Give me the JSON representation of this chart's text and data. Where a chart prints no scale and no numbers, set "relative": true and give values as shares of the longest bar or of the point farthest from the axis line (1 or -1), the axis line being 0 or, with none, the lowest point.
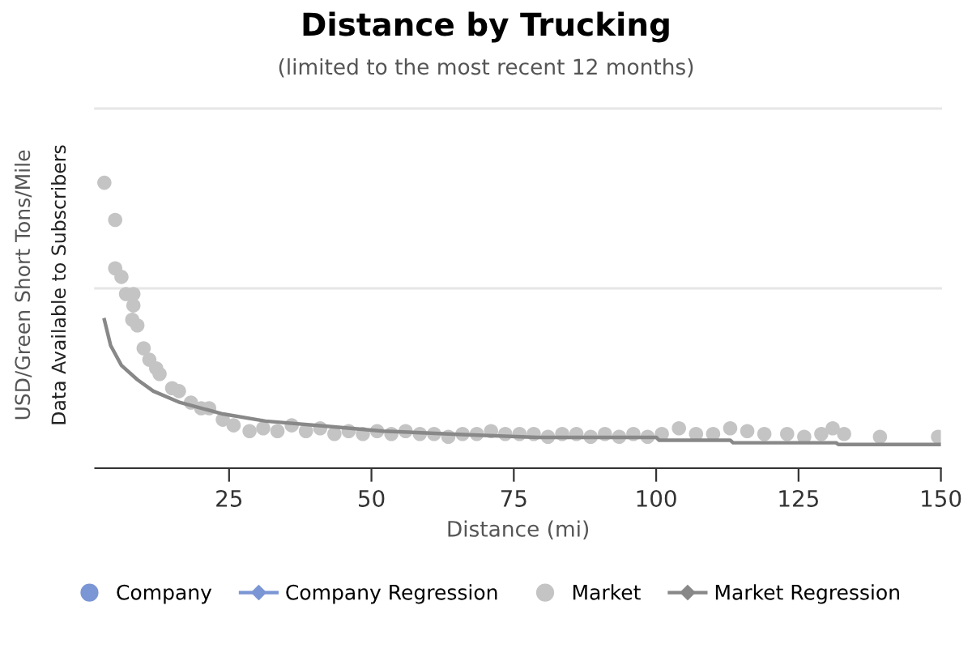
{
  "chart_data": {
    "type": "scatter",
    "title": "Distance by Trucking",
    "subtitle": "(limited to the most recent 12 months)",
    "xlabel": "Distance (mi)",
    "ylabel": "USD/Green Short Tons/Mile",
    "annotations": [
      "Data Available to Subscribers"
    ],
    "relative": true,
    "xlim": [
      1.5,
      150
    ],
    "xticks": [
      25,
      50,
      75,
      100,
      125,
      150
    ],
    "legend": "bottom",
    "tick_labels": "x",
    "ref_lines": [
      {
        "axis": "y",
        "value": 0.63,
        "color": "#e6e6e6"
      },
      {
        "axis": "y",
        "value": 1.26,
        "color": "#e6e6e6"
      }
    ],
    "series": [
      {
        "name": "Company",
        "color": "#7b96d4"
      },
      {
        "name": "Company Regression",
        "color": "#7b96d4",
        "type": "line"
      },
      {
        "name": "Market",
        "color": "#c4c4c4",
        "x": [
          3.1,
          5.0,
          5.0,
          6.1,
          6.9,
          8.2,
          8.2,
          8.0,
          8.9,
          10.0,
          11.0,
          12.2,
          12.8,
          15.0,
          16.2,
          18.3,
          20.1,
          21.5,
          23.9,
          25.8,
          28.6,
          31,
          33.5,
          36,
          38.5,
          41,
          43.5,
          46,
          48.5,
          51,
          53.5,
          56,
          58.5,
          61,
          63.5,
          66,
          68.5,
          71,
          73.5,
          76,
          78.5,
          81,
          83.5,
          86,
          88.5,
          91,
          93.5,
          96,
          98.5,
          101,
          104,
          107,
          110,
          113,
          116,
          119,
          123,
          126,
          129,
          131,
          133,
          139.3,
          149.5
        ],
        "values": [
          1.0,
          0.87,
          0.7,
          0.67,
          0.61,
          0.61,
          0.57,
          0.52,
          0.5,
          0.42,
          0.38,
          0.35,
          0.33,
          0.28,
          0.27,
          0.23,
          0.21,
          0.21,
          0.17,
          0.15,
          0.13,
          0.14,
          0.13,
          0.15,
          0.13,
          0.14,
          0.12,
          0.13,
          0.12,
          0.13,
          0.12,
          0.13,
          0.12,
          0.12,
          0.11,
          0.12,
          0.12,
          0.13,
          0.12,
          0.12,
          0.12,
          0.11,
          0.12,
          0.12,
          0.11,
          0.12,
          0.11,
          0.12,
          0.11,
          0.12,
          0.14,
          0.12,
          0.12,
          0.14,
          0.13,
          0.12,
          0.12,
          0.11,
          0.12,
          0.14,
          0.12,
          0.11,
          0.11
        ]
      },
      {
        "name": "Market Regression",
        "color": "#888888",
        "type": "line",
        "x": [
          3.1,
          4.2,
          6.1,
          8.9,
          11.7,
          16.4,
          23.9,
          31.4,
          42.6,
          52.0,
          66,
          79.1,
          100,
          100.5,
          113,
          113.5,
          131.6,
          132,
          150
        ],
        "values": [
          0.52,
          0.43,
          0.36,
          0.31,
          0.27,
          0.23,
          0.19,
          0.165,
          0.146,
          0.13,
          0.118,
          0.108,
          0.108,
          0.098,
          0.098,
          0.089,
          0.089,
          0.083,
          0.083
        ]
      }
    ]
  }
}
